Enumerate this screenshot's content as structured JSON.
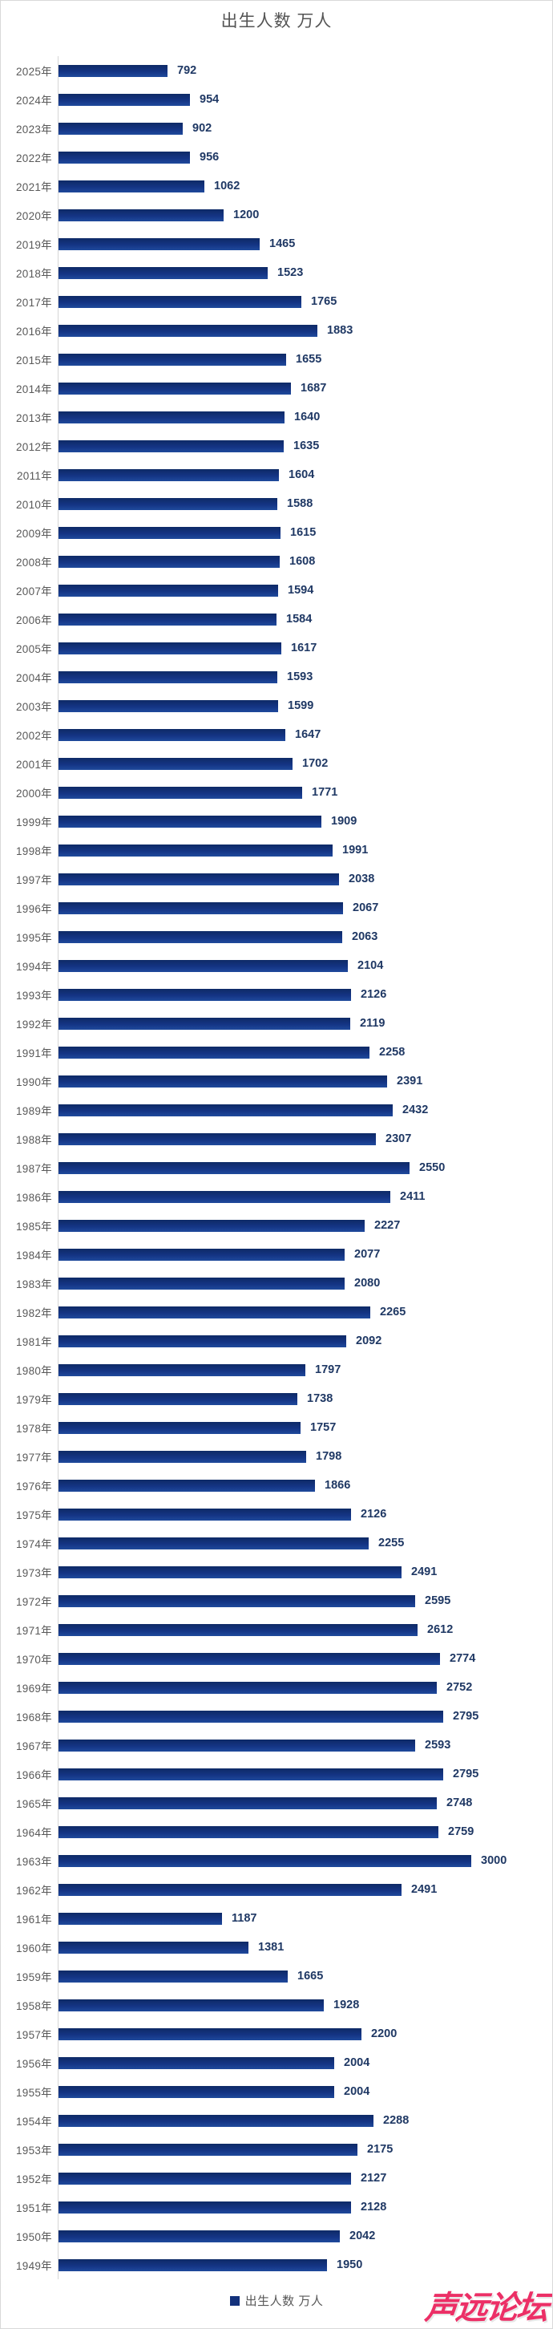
{
  "title": "出生人数 万人",
  "legend": {
    "label": "出生人数 万人",
    "marker_color": "#13317b"
  },
  "watermark": "声远论坛",
  "colors": {
    "bar": "#13317b",
    "bar_gradient_top": "#0e2a66",
    "bar_gradient_bottom": "#1f4a9c",
    "value_label": "#1f3864",
    "year_label": "#595959",
    "title": "#545454",
    "axis_line": "#d6d6d6",
    "page_border": "#d9d9d9",
    "watermark": "#ec2f66"
  },
  "chart_data": {
    "type": "bar",
    "orientation": "horizontal",
    "title": "出生人数 万人",
    "legend_entries": [
      "出生人数 万人"
    ],
    "xlabel": "",
    "ylabel": "",
    "xlim": [
      0,
      3000
    ],
    "grid": false,
    "value_labels_shown": true,
    "legend_position": "bottom-center",
    "categories": [
      "2025年",
      "2024年",
      "2023年",
      "2022年",
      "2021年",
      "2020年",
      "2019年",
      "2018年",
      "2017年",
      "2016年",
      "2015年",
      "2014年",
      "2013年",
      "2012年",
      "2011年",
      "2010年",
      "2009年",
      "2008年",
      "2007年",
      "2006年",
      "2005年",
      "2004年",
      "2003年",
      "2002年",
      "2001年",
      "2000年",
      "1999年",
      "1998年",
      "1997年",
      "1996年",
      "1995年",
      "1994年",
      "1993年",
      "1992年",
      "1991年",
      "1990年",
      "1989年",
      "1988年",
      "1987年",
      "1986年",
      "1985年",
      "1984年",
      "1983年",
      "1982年",
      "1981年",
      "1980年",
      "1979年",
      "1978年",
      "1977年",
      "1976年",
      "1975年",
      "1974年",
      "1973年",
      "1972年",
      "1971年",
      "1970年",
      "1969年",
      "1968年",
      "1967年",
      "1966年",
      "1965年",
      "1964年",
      "1963年",
      "1962年",
      "1961年",
      "1960年",
      "1959年",
      "1958年",
      "1957年",
      "1956年",
      "1955年",
      "1954年",
      "1953年",
      "1952年",
      "1951年",
      "1950年",
      "1949年"
    ],
    "values": [
      792,
      954,
      902,
      956,
      1062,
      1200,
      1465,
      1523,
      1765,
      1883,
      1655,
      1687,
      1640,
      1635,
      1604,
      1588,
      1615,
      1608,
      1594,
      1584,
      1617,
      1593,
      1599,
      1647,
      1702,
      1771,
      1909,
      1991,
      2038,
      2067,
      2063,
      2104,
      2126,
      2119,
      2258,
      2391,
      2432,
      2307,
      2550,
      2411,
      2227,
      2077,
      2080,
      2265,
      2092,
      1797,
      1738,
      1757,
      1798,
      1866,
      2126,
      2255,
      2491,
      2595,
      2612,
      2774,
      2752,
      2795,
      2593,
      2795,
      2748,
      2759,
      3000,
      2491,
      1187,
      1381,
      1665,
      1928,
      2200,
      2004,
      2004,
      2288,
      2175,
      2127,
      2128,
      2042,
      1950
    ]
  }
}
